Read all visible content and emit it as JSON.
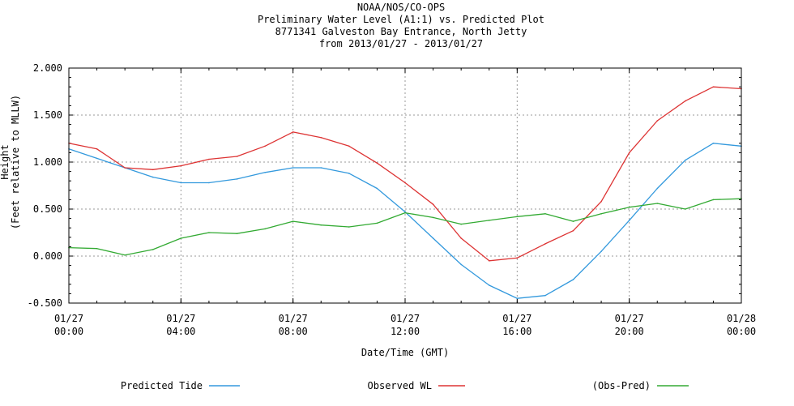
{
  "chart_data": {
    "type": "line",
    "title_lines": [
      "NOAA/NOS/CO-OPS",
      "Preliminary  Water Level (A1:1) vs. Predicted Plot",
      "8771341 Galveston Bay Entrance, North Jetty",
      "from 2013/01/27 - 2013/01/27"
    ],
    "xlabel": "Date/Time (GMT)",
    "ylabel_lines": [
      "Height",
      "(Feet relative to MLLW)"
    ],
    "xlim": [
      "2013-01-27 00:00",
      "2013-01-28 00:00"
    ],
    "ylim": [
      -0.5,
      2.0
    ],
    "yticks": [
      "2.000",
      "1.500",
      "1.000",
      "0.500",
      "0.000",
      "-0.500"
    ],
    "xticks": [
      {
        "date": "01/27",
        "time": "00:00"
      },
      {
        "date": "01/27",
        "time": "04:00"
      },
      {
        "date": "01/27",
        "time": "08:00"
      },
      {
        "date": "01/27",
        "time": "12:00"
      },
      {
        "date": "01/27",
        "time": "16:00"
      },
      {
        "date": "01/27",
        "time": "20:00"
      },
      {
        "date": "01/28",
        "time": "00:00"
      }
    ],
    "grid": true,
    "legend_position": "bottom",
    "x": [
      "2013-01-27 00:00",
      "2013-01-27 01:00",
      "2013-01-27 02:00",
      "2013-01-27 03:00",
      "2013-01-27 04:00",
      "2013-01-27 05:00",
      "2013-01-27 06:00",
      "2013-01-27 07:00",
      "2013-01-27 08:00",
      "2013-01-27 09:00",
      "2013-01-27 10:00",
      "2013-01-27 11:00",
      "2013-01-27 12:00",
      "2013-01-27 13:00",
      "2013-01-27 14:00",
      "2013-01-27 15:00",
      "2013-01-27 16:00",
      "2013-01-27 17:00",
      "2013-01-27 18:00",
      "2013-01-27 19:00",
      "2013-01-27 20:00",
      "2013-01-27 21:00",
      "2013-01-27 22:00",
      "2013-01-27 23:00",
      "2013-01-28 00:00"
    ],
    "series": [
      {
        "name": "Predicted Tide",
        "color": "#3399dd",
        "values": [
          1.14,
          1.04,
          0.94,
          0.84,
          0.78,
          0.78,
          0.82,
          0.89,
          0.94,
          0.94,
          0.88,
          0.72,
          0.47,
          0.19,
          -0.09,
          -0.31,
          -0.45,
          -0.42,
          -0.25,
          0.05,
          0.38,
          0.72,
          1.02,
          1.2,
          1.17
        ]
      },
      {
        "name": "Observed WL",
        "color": "#dd3333",
        "values": [
          1.2,
          1.14,
          0.94,
          0.92,
          0.96,
          1.03,
          1.06,
          1.17,
          1.32,
          1.26,
          1.17,
          0.99,
          0.78,
          0.55,
          0.19,
          -0.05,
          -0.02,
          0.13,
          0.27,
          0.58,
          1.1,
          1.44,
          1.65,
          1.8,
          1.78
        ]
      },
      {
        "name": "(Obs-Pred)",
        "color": "#33aa33",
        "values": [
          0.09,
          0.08,
          0.01,
          0.07,
          0.19,
          0.25,
          0.24,
          0.29,
          0.37,
          0.33,
          0.31,
          0.35,
          0.46,
          0.41,
          0.34,
          0.38,
          0.42,
          0.45,
          0.37,
          0.45,
          0.52,
          0.56,
          0.5,
          0.6,
          0.61
        ]
      }
    ]
  }
}
